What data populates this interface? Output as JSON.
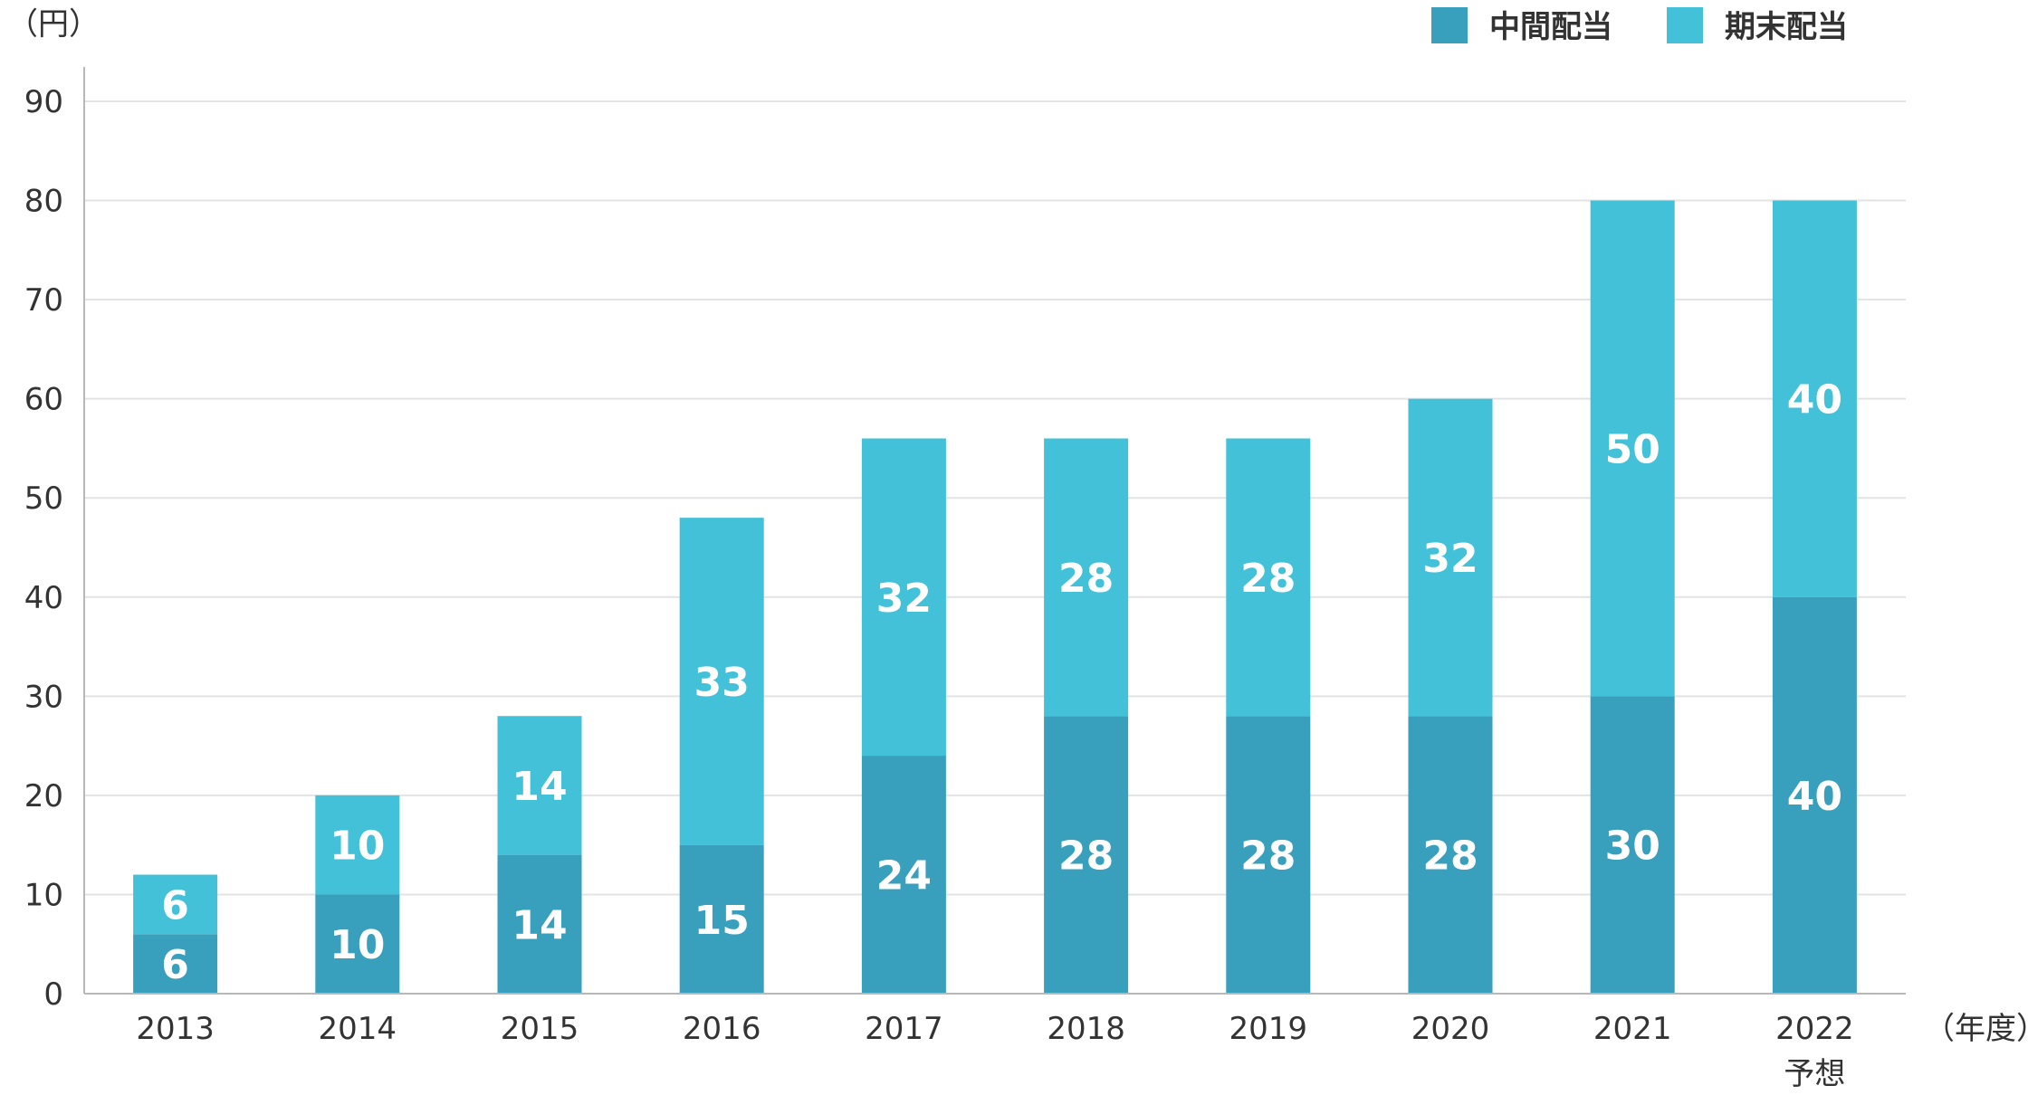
{
  "chart_data": {
    "type": "bar",
    "stacked": true,
    "categories": [
      "2013",
      "2014",
      "2015",
      "2016",
      "2017",
      "2018",
      "2019",
      "2020",
      "2021",
      "2022"
    ],
    "category_sublabels": [
      "",
      "",
      "",
      "",
      "",
      "",
      "",
      "",
      "",
      "予想"
    ],
    "series": [
      {
        "name": "中間配当",
        "color": "#389fbd",
        "values": [
          6,
          10,
          14,
          15,
          24,
          28,
          28,
          28,
          30,
          40
        ]
      },
      {
        "name": "期末配当",
        "color": "#42c1d8",
        "values": [
          6,
          10,
          14,
          33,
          32,
          28,
          28,
          32,
          50,
          40
        ]
      }
    ],
    "ylabel": "（円）",
    "xlabel": "（年度）",
    "ylim": [
      0,
      90
    ],
    "yticks": [
      0,
      10,
      20,
      30,
      40,
      50,
      60,
      70,
      80,
      90
    ],
    "grid": true,
    "legend_position": "top-right",
    "data_labels": true
  }
}
